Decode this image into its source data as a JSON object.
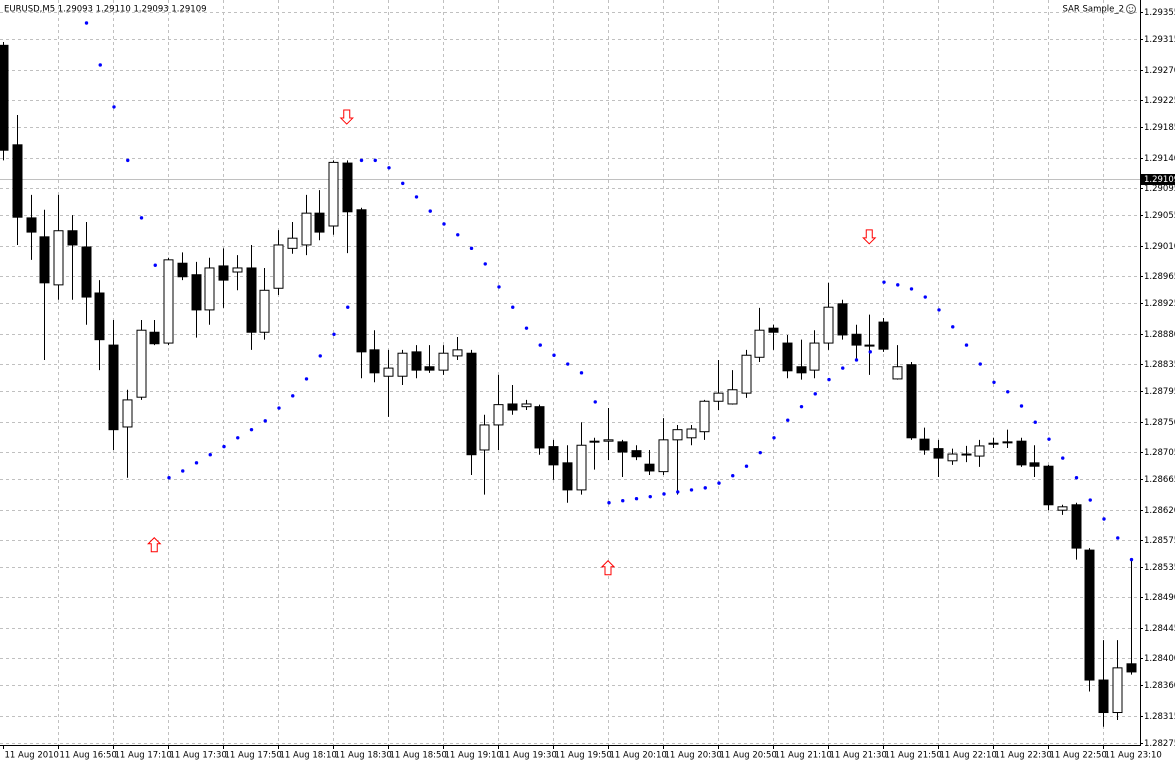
{
  "chart_data": {
    "type": "candlestick",
    "symbol_info": "EURUSD,M5  1.29093 1.29110 1.29093 1.29109",
    "indicator": "SAR Sample_2",
    "categories": [
      "11 Aug 2010",
      null,
      null,
      null,
      "11 Aug 16:50",
      null,
      null,
      null,
      "11 Aug 17:10",
      null,
      null,
      null,
      "11 Aug 17:30",
      null,
      null,
      null,
      "11 Aug 17:50",
      null,
      null,
      null,
      "11 Aug 18:10",
      null,
      null,
      null,
      "11 Aug 18:30",
      null,
      null,
      null,
      "11 Aug 18:50",
      null,
      null,
      null,
      "11 Aug 19:10",
      null,
      null,
      null,
      "11 Aug 19:30",
      null,
      null,
      null,
      "11 Aug 19:50",
      null,
      null,
      null,
      "11 Aug 20:10",
      null,
      null,
      null,
      "11 Aug 20:30",
      null,
      null,
      null,
      "11 Aug 20:50",
      null,
      null,
      null,
      "11 Aug 21:10",
      null,
      null,
      null,
      "11 Aug 21:30",
      null,
      null,
      null,
      "11 Aug 21:50",
      null,
      null,
      null,
      "11 Aug 22:10",
      null,
      null,
      null,
      "11 Aug 22:30",
      null,
      null,
      null,
      "11 Aug 22:50",
      null,
      null,
      null,
      "11 Aug 23:10",
      null,
      null
    ],
    "open": [
      1.29306,
      1.29159,
      1.29051,
      1.29023,
      1.28952,
      1.29032,
      1.29008,
      1.2894,
      1.28863,
      1.28742,
      1.28786,
      1.28882,
      1.28866,
      1.28984,
      1.28967,
      1.28915,
      1.2898,
      1.28971,
      1.28977,
      1.28882,
      1.28947,
      1.29006,
      1.29011,
      1.29058,
      1.29039,
      1.29132,
      1.29063,
      1.28856,
      1.28817,
      1.28817,
      1.28853,
      1.28831,
      1.28826,
      1.28847,
      1.28851,
      1.28708,
      1.28745,
      1.28776,
      1.28772,
      1.28772,
      1.28713,
      1.28689,
      1.28649,
      1.2872,
      1.28721,
      1.2872,
      1.28707,
      1.28687,
      1.28676,
      1.28723,
      1.28726,
      1.28735,
      1.2878,
      1.28776,
      1.28792,
      1.28845,
      1.28888,
      1.28866,
      1.28831,
      1.28826,
      1.28866,
      1.28924,
      1.28879,
      1.28863,
      1.28897,
      1.28813,
      1.28834,
      1.28724,
      1.2871,
      1.28692,
      1.28702,
      1.28699,
      1.28718,
      1.2872,
      1.28721,
      1.28689,
      1.28684,
      1.28619,
      1.28627,
      1.2856,
      1.28368,
      1.2832,
      1.28392
    ],
    "high": [
      1.29311,
      1.29203,
      1.29085,
      1.29063,
      1.29085,
      1.29055,
      1.29045,
      1.28959,
      1.289,
      1.28797,
      1.289,
      1.289,
      1.28992,
      1.29,
      1.28986,
      1.28992,
      1.29006,
      1.28996,
      1.29011,
      1.28977,
      1.29033,
      1.29045,
      1.29085,
      1.29092,
      1.29136,
      1.29136,
      1.29066,
      1.28885,
      1.28856,
      1.28856,
      1.28863,
      1.28863,
      1.28863,
      1.28875,
      1.28856,
      1.2876,
      1.28819,
      1.28804,
      1.28782,
      1.28775,
      1.28723,
      1.28715,
      1.28749,
      1.28726,
      1.2877,
      1.28723,
      1.28715,
      1.28708,
      1.28755,
      1.28745,
      1.28745,
      1.28782,
      1.28841,
      1.28826,
      1.28856,
      1.28918,
      1.28893,
      1.28878,
      1.28871,
      1.28885,
      1.28955,
      1.2893,
      1.28893,
      1.28908,
      1.28903,
      1.28863,
      1.28838,
      1.28741,
      1.28723,
      1.2871,
      1.28714,
      1.28723,
      1.28726,
      1.28738,
      1.28726,
      1.28715,
      1.28686,
      1.28627,
      1.2863,
      1.28563,
      1.28427,
      1.28427,
      1.28546
    ],
    "low": [
      1.29136,
      1.29011,
      1.28989,
      1.28841,
      1.2893,
      1.2893,
      1.28893,
      1.28826,
      1.28708,
      1.28667,
      1.28782,
      1.28863,
      1.28863,
      1.28959,
      1.28874,
      1.28893,
      1.28918,
      1.28944,
      1.28856,
      1.28871,
      1.28937,
      1.28998,
      1.28996,
      1.29018,
      1.29026,
      1.28999,
      1.28814,
      1.28808,
      1.28757,
      1.28804,
      1.28814,
      1.28822,
      1.28819,
      1.28841,
      1.28671,
      1.28642,
      1.28708,
      1.2876,
      1.28767,
      1.28701,
      1.28664,
      1.2863,
      1.28642,
      1.28679,
      1.28693,
      1.28668,
      1.28693,
      1.28671,
      1.28671,
      1.28642,
      1.28715,
      1.28723,
      1.28767,
      1.28775,
      1.28785,
      1.28838,
      1.28856,
      1.28814,
      1.28812,
      1.28814,
      1.28856,
      1.28871,
      1.28841,
      1.28819,
      1.28853,
      1.28812,
      1.28723,
      1.28701,
      1.28668,
      1.28686,
      1.2869,
      1.28683,
      1.28711,
      1.28711,
      1.28683,
      1.28668,
      1.28619,
      1.28612,
      1.28546,
      1.28351,
      1.28299,
      1.28309,
      1.28376
    ],
    "close": [
      1.29151,
      1.29052,
      1.2903,
      1.28955,
      1.29032,
      1.29011,
      1.28934,
      1.28871,
      1.28738,
      1.28782,
      1.28885,
      1.28865,
      1.28989,
      1.28964,
      1.28915,
      1.28977,
      1.28959,
      1.28977,
      1.28882,
      1.28944,
      1.29011,
      1.29021,
      1.29058,
      1.2903,
      1.29133,
      1.2906,
      1.28853,
      1.28822,
      1.28829,
      1.28851,
      1.28826,
      1.28826,
      1.28851,
      1.28856,
      1.28701,
      1.28745,
      1.28775,
      1.28767,
      1.28776,
      1.28711,
      1.28686,
      1.28649,
      1.28715,
      1.28721,
      1.28723,
      1.28705,
      1.28698,
      1.28677,
      1.28723,
      1.28738,
      1.28739,
      1.2878,
      1.28792,
      1.28797,
      1.28848,
      1.28885,
      1.28882,
      1.28825,
      1.28822,
      1.28866,
      1.28919,
      1.28878,
      1.28863,
      1.28863,
      1.28857,
      1.28831,
      1.28726,
      1.28708,
      1.28696,
      1.28702,
      1.28702,
      1.28714,
      1.28718,
      1.2872,
      1.28686,
      1.28684,
      1.28627,
      1.28624,
      1.28563,
      1.28368,
      1.2832,
      1.28386,
      1.2838
    ],
    "up_color": "#ffffff",
    "down_color": "#000000",
    "sar": {
      "color": "#0000ff",
      "values": [
        null,
        null,
        null,
        null,
        null,
        null,
        1.29339,
        1.29277,
        1.29215,
        1.29136,
        1.29051,
        1.28981,
        1.28667,
        1.28677,
        1.28689,
        1.28701,
        1.28713,
        1.28726,
        1.28738,
        1.28751,
        1.2877,
        1.28788,
        1.28813,
        1.28847,
        1.28879,
        1.28919,
        1.29136,
        1.29136,
        1.29125,
        1.29102,
        1.29082,
        1.29061,
        1.29042,
        1.29026,
        1.29006,
        1.28983,
        1.28949,
        1.28919,
        1.28888,
        1.28863,
        1.28848,
        1.28835,
        1.28822,
        1.28779,
        1.2863,
        1.28633,
        1.28636,
        1.28639,
        1.28643,
        1.28646,
        1.28649,
        1.28652,
        1.28659,
        1.2867,
        1.28684,
        1.28704,
        1.28726,
        1.28752,
        1.28772,
        1.28791,
        1.28812,
        1.28829,
        1.28841,
        1.28853,
        1.28956,
        1.28952,
        1.28946,
        1.28934,
        1.28915,
        1.2889,
        1.28863,
        1.28835,
        1.28808,
        1.28794,
        1.28773,
        1.28749,
        1.28724,
        1.28696,
        1.28667,
        1.28634,
        1.28606,
        1.28578,
        1.28546
      ]
    },
    "up_arrows": {
      "color": "#ff0000",
      "values": [
        null,
        null,
        null,
        null,
        null,
        null,
        null,
        null,
        null,
        null,
        null,
        1.28568,
        null,
        null,
        null,
        null,
        null,
        null,
        null,
        null,
        null,
        null,
        null,
        null,
        null,
        null,
        null,
        null,
        null,
        null,
        null,
        null,
        null,
        null,
        null,
        null,
        null,
        null,
        null,
        null,
        null,
        null,
        null,
        null,
        1.28534,
        null,
        null,
        null,
        null,
        null,
        null,
        null,
        null,
        null,
        null,
        null,
        null,
        null,
        null,
        null,
        null,
        null,
        null,
        null,
        null,
        null,
        null,
        null,
        null,
        null,
        null,
        null,
        null,
        null,
        null,
        null,
        null,
        null,
        null,
        null,
        null,
        null,
        null
      ]
    },
    "down_arrows": {
      "color": "#ff0000",
      "values": [
        null,
        null,
        null,
        null,
        null,
        null,
        null,
        null,
        null,
        null,
        null,
        null,
        null,
        null,
        null,
        null,
        null,
        null,
        null,
        null,
        null,
        null,
        null,
        null,
        null,
        1.292,
        null,
        null,
        null,
        null,
        null,
        null,
        null,
        null,
        null,
        null,
        null,
        null,
        null,
        null,
        null,
        null,
        null,
        null,
        null,
        null,
        null,
        null,
        null,
        null,
        null,
        null,
        null,
        null,
        null,
        null,
        null,
        null,
        null,
        null,
        null,
        null,
        null,
        1.29023,
        null,
        null,
        null,
        null,
        null,
        null,
        null,
        null,
        null,
        null,
        null,
        null,
        null,
        null,
        null,
        null,
        null,
        null,
        null
      ]
    },
    "current_price": 1.29109,
    "ylim": [
      1.28272,
      1.29373
    ],
    "yticks": [
      1.29355,
      1.29315,
      {
        "value": 1.2927,
        "label": "1.29270"
      },
      1.29225,
      1.29185,
      {
        "value": 1.2914,
        "label": "1.29140"
      },
      1.29095,
      1.29055,
      {
        "value": 1.2901,
        "label": "1.29010"
      },
      1.28965,
      1.28925,
      {
        "value": 1.2888,
        "label": "1.28880"
      },
      1.28835,
      1.28795,
      {
        "value": 1.2875,
        "label": "1.28750"
      },
      1.28705,
      1.28665,
      {
        "value": 1.2862,
        "label": "1.28620"
      },
      1.28575,
      1.28535,
      {
        "value": 1.2849,
        "label": "1.28490"
      },
      1.28445,
      {
        "value": 1.284,
        "label": "1.28400"
      },
      {
        "value": 1.2836,
        "label": "1.28360"
      },
      1.28315,
      1.28275
    ],
    "grid": true
  }
}
